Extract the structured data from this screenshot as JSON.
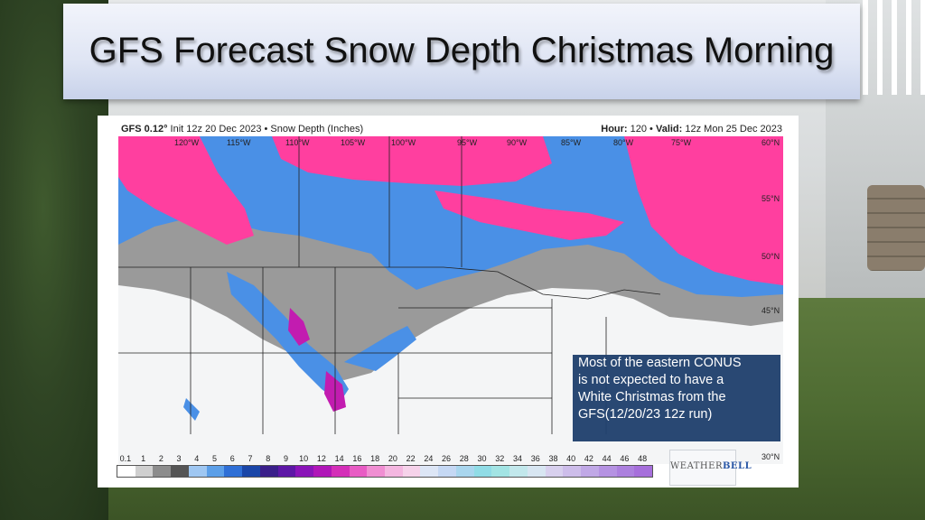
{
  "title": "GFS Forecast Snow Depth Christmas Morning",
  "map": {
    "header_left_model": "GFS 0.12°",
    "header_left_rest": " Init 12z 20 Dec 2023 • Snow Depth (Inches)",
    "header_right_hour_label": "Hour:",
    "header_right_hour": " 120 • ",
    "header_right_valid_label": "Valid:",
    "header_right_valid": " 12z Mon 25 Dec 2023",
    "lon_labels": [
      "120°W",
      "115°W",
      "110°W",
      "105°W",
      "100°W",
      "95°W",
      "90°W",
      "85°W",
      "80°W",
      "75°W"
    ],
    "lat_labels": [
      "60°N",
      "55°N",
      "50°N",
      "45°N",
      "30°N"
    ],
    "colorbar_ticks": [
      "0.1",
      "1",
      "2",
      "3",
      "4",
      "5",
      "6",
      "7",
      "8",
      "9",
      "10",
      "12",
      "14",
      "16",
      "18",
      "20",
      "22",
      "24",
      "26",
      "28",
      "30",
      "32",
      "34",
      "36",
      "38",
      "40",
      "42",
      "44",
      "46",
      "48"
    ],
    "colorbar_colors": [
      "#ffffff",
      "#cfcfcf",
      "#8c8c8c",
      "#555555",
      "#9fc7f2",
      "#5c9fe8",
      "#2f6fd6",
      "#1a46a8",
      "#3a1f8a",
      "#5d17a6",
      "#8a14b8",
      "#b016b8",
      "#d42fb8",
      "#e85cc4",
      "#f08ed2",
      "#f4b6e0",
      "#f6d2ea",
      "#dde6f6",
      "#c5d8f4",
      "#a9d6ee",
      "#90dce6",
      "#a2e4e4",
      "#c2e8ec",
      "#d8e6f2",
      "#d8d0ee",
      "#cdbdea",
      "#c0a8e6",
      "#b592e2",
      "#ac80de",
      "#a66fdb"
    ],
    "logo_part1": "WEATHER",
    "logo_part2": "BELL"
  },
  "note": {
    "lines": [
      "Most of the eastern CONUS",
      "is not expected to have a",
      "White Christmas from the",
      "GFS(12/20/23 12z run)"
    ]
  },
  "colors": {
    "banner": "#dfe5f4",
    "note_bg": "#1f3f6d",
    "snow_heavy": "#ff3f9f",
    "snow_medium": "#4a90e6",
    "snow_light": "#8c8c8c"
  }
}
